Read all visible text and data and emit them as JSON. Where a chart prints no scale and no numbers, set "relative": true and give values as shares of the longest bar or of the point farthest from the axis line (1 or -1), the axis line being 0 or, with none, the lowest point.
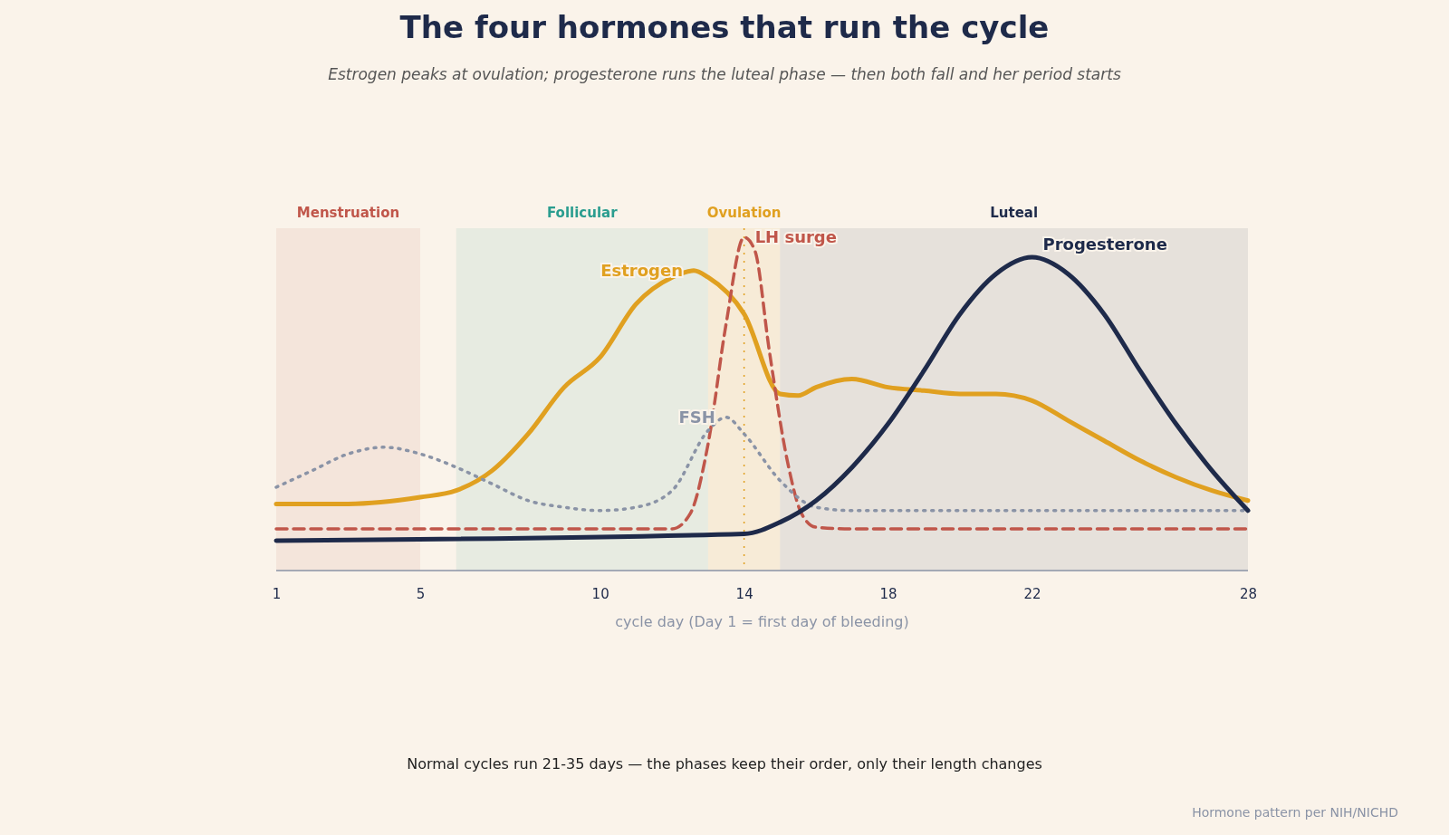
{
  "chart_data": {
    "type": "line",
    "title": "The four hormones that run the cycle",
    "subtitle": "Estrogen peaks at ovulation; progesterone runs the luteal phase — then both fall and her period starts",
    "xlabel": "cycle day (Day 1 = first day of bleeding)",
    "relative": true,
    "xlim": [
      1,
      28
    ],
    "xticks": [
      1,
      5,
      10,
      14,
      18,
      22,
      28
    ],
    "grid": false,
    "legend": false,
    "series": [
      {
        "name": "Estrogen",
        "color": "#e0a020",
        "line_style": "solid",
        "x": [
          1,
          3,
          5,
          6,
          7,
          8,
          9,
          10,
          11,
          12,
          12.6,
          13,
          14,
          15,
          15.5,
          16,
          17,
          18,
          19,
          20,
          21,
          22,
          23,
          24,
          25,
          26,
          27,
          28
        ],
        "values": [
          0.2,
          0.2,
          0.22,
          0.24,
          0.3,
          0.41,
          0.55,
          0.64,
          0.8,
          0.88,
          0.9,
          0.88,
          0.77,
          0.53,
          0.525,
          0.55,
          0.575,
          0.55,
          0.54,
          0.53,
          0.53,
          0.51,
          0.45,
          0.39,
          0.33,
          0.28,
          0.24,
          0.21
        ]
      },
      {
        "name": "LH surge",
        "color": "#c0564a",
        "line_style": "dashed",
        "x": [
          1,
          12,
          12.5,
          13,
          13.5,
          14,
          14.3,
          14.7,
          15.2,
          15.6,
          16,
          17,
          28
        ],
        "values": [
          0.125,
          0.125,
          0.17,
          0.38,
          0.74,
          1,
          0.96,
          0.66,
          0.33,
          0.17,
          0.13,
          0.125,
          0.125
        ]
      },
      {
        "name": "FSH",
        "color": "#8a93a6",
        "line_style": "dotted",
        "x": [
          1,
          2,
          3,
          4,
          5,
          6,
          7,
          8,
          9,
          10,
          11,
          12,
          13,
          13.5,
          14,
          15,
          16,
          17,
          28
        ],
        "values": [
          0.25,
          0.3,
          0.35,
          0.37,
          0.35,
          0.31,
          0.26,
          0.21,
          0.19,
          0.18,
          0.19,
          0.24,
          0.42,
          0.46,
          0.41,
          0.27,
          0.19,
          0.18,
          0.18
        ]
      },
      {
        "name": "Progesterone",
        "color": "#1e2a4a",
        "line_style": "solid",
        "x": [
          1,
          14,
          15,
          16,
          17,
          18,
          19,
          20,
          21,
          22,
          23,
          24,
          25,
          26,
          27,
          28
        ],
        "values": [
          0.09,
          0.11,
          0.145,
          0.21,
          0.31,
          0.44,
          0.6,
          0.77,
          0.89,
          0.94,
          0.89,
          0.77,
          0.6,
          0.44,
          0.3,
          0.18
        ]
      }
    ],
    "bands": [
      {
        "axis": "x",
        "from": 1,
        "to": 5,
        "label": "Menstruation",
        "color": "#c0564a"
      },
      {
        "axis": "x",
        "from": 6,
        "to": 13,
        "label": "Follicular",
        "color": "#2a9d8f"
      },
      {
        "axis": "x",
        "from": 13,
        "to": 15,
        "label": "Ovulation",
        "color": "#e0a020"
      },
      {
        "axis": "x",
        "from": 15,
        "to": 28,
        "label": "Luteal",
        "color": "#1e2a4a"
      }
    ],
    "ref_lines": [
      {
        "axis": "x",
        "value": 14,
        "color": "#e0a020",
        "line_style": "dotted"
      }
    ],
    "annotations": [
      "Normal cycles run 21-35 days — the phases keep their order, only their length changes",
      "Hormone pattern per NIH/NICHD"
    ]
  }
}
